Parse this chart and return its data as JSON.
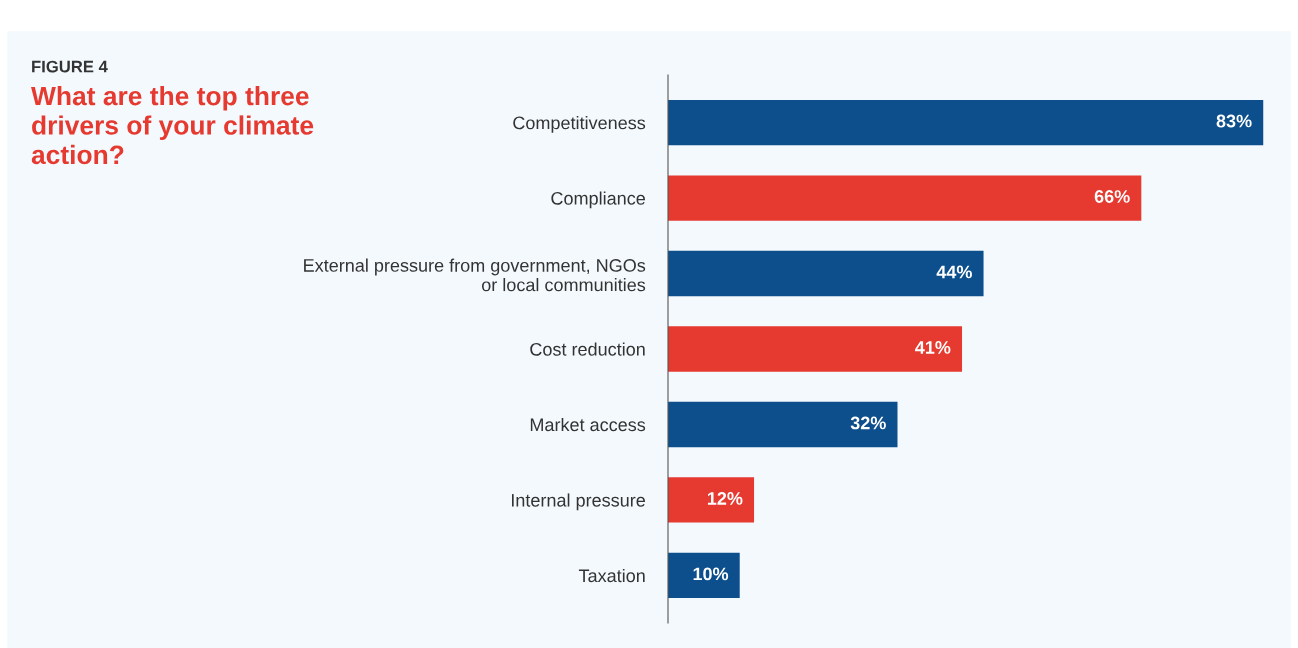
{
  "chart_data": {
    "type": "bar",
    "orientation": "horizontal",
    "subtitle": "FIGURE 4",
    "title": "What are the top three drivers of your climate action?",
    "categories": [
      "Competitiveness",
      "Compliance",
      "External pressure from government, NGOs\nor local communities",
      "Cost reduction",
      "Market access",
      "Internal pressure",
      "Taxation"
    ],
    "values": [
      83,
      66,
      44,
      41,
      32,
      12,
      10
    ],
    "colors": [
      "#0d4f8c",
      "#e63a30",
      "#0d4f8c",
      "#e63a30",
      "#0d4f8c",
      "#e63a30",
      "#0d4f8c"
    ],
    "value_labels": [
      "83%",
      "66%",
      "44%",
      "41%",
      "32%",
      "12%",
      "10%"
    ],
    "grid": false,
    "legend": false,
    "tick_labels": "y"
  }
}
